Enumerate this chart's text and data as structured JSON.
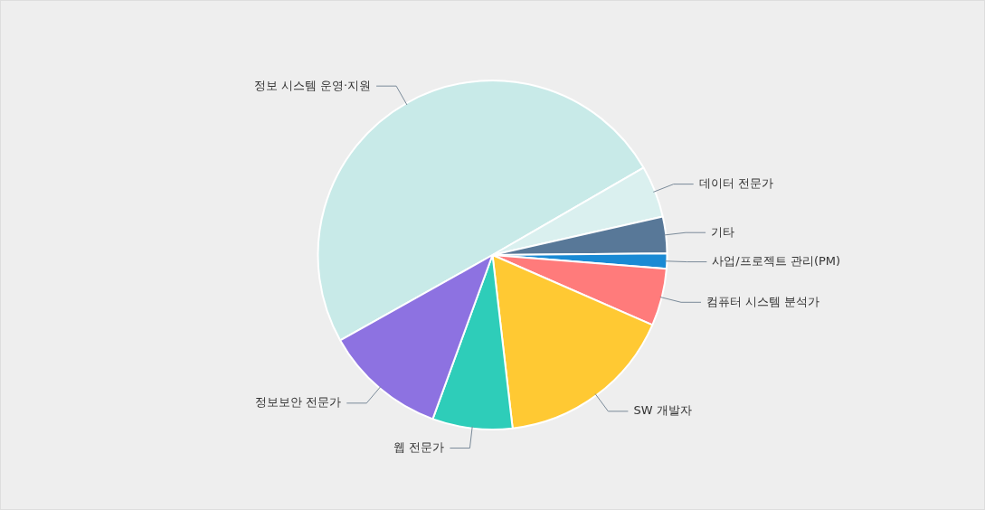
{
  "chart_data": {
    "type": "pie",
    "categories": [
      "정보 시스템 운영·지원",
      "데이터 전문가",
      "기타",
      "사업/프로젝트 관리(PM)",
      "컴퓨터 시스템 분석가",
      "SW 개발자",
      "웹 전문가",
      "정보보안 전문가"
    ],
    "values": [
      49.8,
      4.8,
      3.4,
      1.4,
      5.3,
      16.6,
      7.4,
      11.3
    ],
    "colors": [
      "#c8eae8",
      "#daf0ef",
      "#587898",
      "#1a8ad4",
      "#ff7b7b",
      "#ffc933",
      "#2ecdb9",
      "#8d72e1"
    ],
    "legend": false
  }
}
